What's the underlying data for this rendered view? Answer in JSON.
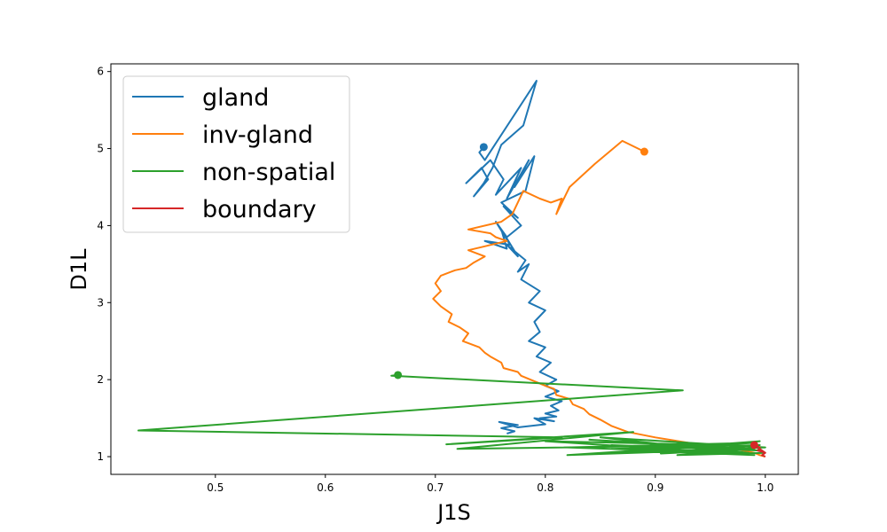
{
  "chart_data": {
    "type": "line",
    "xlabel": "J1S",
    "ylabel": "D1L",
    "xlim": [
      0.405,
      1.03
    ],
    "ylim": [
      0.77,
      6.1
    ],
    "x_ticks": [
      "0.5",
      "0.6",
      "0.7",
      "0.8",
      "0.9",
      "1.0"
    ],
    "y_ticks": [
      "1",
      "2",
      "3",
      "4",
      "5",
      "6"
    ],
    "grid": false,
    "legend_position": "top-left",
    "series": [
      {
        "name": "gland",
        "color": "#1f77b4",
        "x": [
          0.744,
          0.74,
          0.745,
          0.792,
          0.78,
          0.76,
          0.752,
          0.744,
          0.735,
          0.748,
          0.742,
          0.728,
          0.75,
          0.762,
          0.755,
          0.778,
          0.765,
          0.785,
          0.772,
          0.79,
          0.782,
          0.76,
          0.775,
          0.762,
          0.778,
          0.765,
          0.755,
          0.768,
          0.745,
          0.765,
          0.76,
          0.775,
          0.765,
          0.782,
          0.775,
          0.785,
          0.778,
          0.795,
          0.785,
          0.8,
          0.79,
          0.795,
          0.785,
          0.8,
          0.792,
          0.805,
          0.795,
          0.81,
          0.8,
          0.812,
          0.8,
          0.815,
          0.805,
          0.812,
          0.8,
          0.81,
          0.795,
          0.808,
          0.79,
          0.8,
          0.775,
          0.758,
          0.775,
          0.76,
          0.772,
          0.765
        ],
        "y": [
          5.02,
          4.95,
          4.85,
          5.88,
          5.3,
          5.05,
          4.75,
          4.55,
          4.38,
          4.6,
          4.75,
          4.55,
          4.85,
          4.6,
          4.4,
          4.75,
          4.35,
          4.85,
          4.5,
          4.9,
          4.45,
          4.3,
          4.1,
          4.25,
          4.0,
          3.85,
          4.05,
          3.75,
          3.8,
          3.7,
          3.95,
          3.6,
          3.75,
          3.55,
          3.4,
          3.5,
          3.3,
          3.15,
          3.0,
          2.9,
          2.75,
          2.62,
          2.5,
          2.42,
          2.3,
          2.22,
          2.1,
          2.0,
          1.92,
          1.85,
          1.78,
          1.72,
          1.66,
          1.6,
          1.56,
          1.52,
          1.5,
          1.46,
          1.5,
          1.42,
          1.38,
          1.45,
          1.41,
          1.37,
          1.33,
          1.3
        ]
      },
      {
        "name": "inv-gland",
        "color": "#ff7f0e",
        "x": [
          0.89,
          0.87,
          0.845,
          0.822,
          0.81,
          0.815,
          0.805,
          0.795,
          0.78,
          0.77,
          0.76,
          0.73,
          0.75,
          0.755,
          0.765,
          0.742,
          0.73,
          0.745,
          0.735,
          0.728,
          0.718,
          0.705,
          0.7,
          0.705,
          0.698,
          0.705,
          0.715,
          0.712,
          0.722,
          0.73,
          0.725,
          0.74,
          0.745,
          0.75,
          0.76,
          0.762,
          0.775,
          0.778,
          0.79,
          0.8,
          0.808,
          0.81,
          0.822,
          0.825,
          0.835,
          0.84,
          0.85,
          0.86,
          0.875,
          0.9,
          0.93,
          0.96,
          0.98,
          0.99,
          0.995,
          1.0
        ],
        "y": [
          4.96,
          5.1,
          4.8,
          4.5,
          4.15,
          4.35,
          4.3,
          4.35,
          4.45,
          4.15,
          4.05,
          3.95,
          3.9,
          3.85,
          3.8,
          3.72,
          3.68,
          3.6,
          3.52,
          3.45,
          3.42,
          3.35,
          3.25,
          3.15,
          3.05,
          2.95,
          2.85,
          2.75,
          2.68,
          2.6,
          2.5,
          2.42,
          2.35,
          2.3,
          2.22,
          2.15,
          2.1,
          2.05,
          1.98,
          1.92,
          1.88,
          1.8,
          1.75,
          1.68,
          1.62,
          1.55,
          1.48,
          1.4,
          1.32,
          1.25,
          1.18,
          1.12,
          1.08,
          1.05,
          1.02,
          1.0
        ]
      },
      {
        "name": "non-spatial",
        "color": "#2ca02c",
        "x": [
          0.666,
          0.66,
          0.925,
          0.43,
          0.815,
          0.71,
          0.88,
          0.72,
          0.97,
          0.8,
          0.965,
          0.82,
          0.99,
          0.82,
          0.985,
          0.84,
          0.995,
          0.86,
          0.99,
          0.85,
          1.0,
          0.87,
          0.995,
          0.88,
          0.99,
          0.9,
          0.985,
          0.86,
          0.995,
          0.905,
          0.99,
          0.92,
          1.0
        ],
        "y": [
          2.06,
          2.05,
          1.86,
          1.34,
          1.25,
          1.16,
          1.32,
          1.1,
          1.15,
          1.2,
          1.05,
          1.12,
          1.18,
          1.02,
          1.1,
          1.22,
          1.08,
          1.15,
          1.03,
          1.25,
          1.12,
          1.05,
          1.2,
          1.08,
          1.02,
          1.17,
          1.05,
          1.1,
          1.15,
          1.04,
          1.1,
          1.02,
          1.05
        ]
      },
      {
        "name": "boundary",
        "color": "#d62728",
        "x": [
          0.99,
          0.995,
          0.993,
          0.998,
          0.995,
          1.0,
          0.997,
          1.0
        ],
        "y": [
          1.15,
          1.12,
          1.08,
          1.06,
          1.1,
          1.05,
          1.02,
          1.0
        ]
      }
    ]
  }
}
